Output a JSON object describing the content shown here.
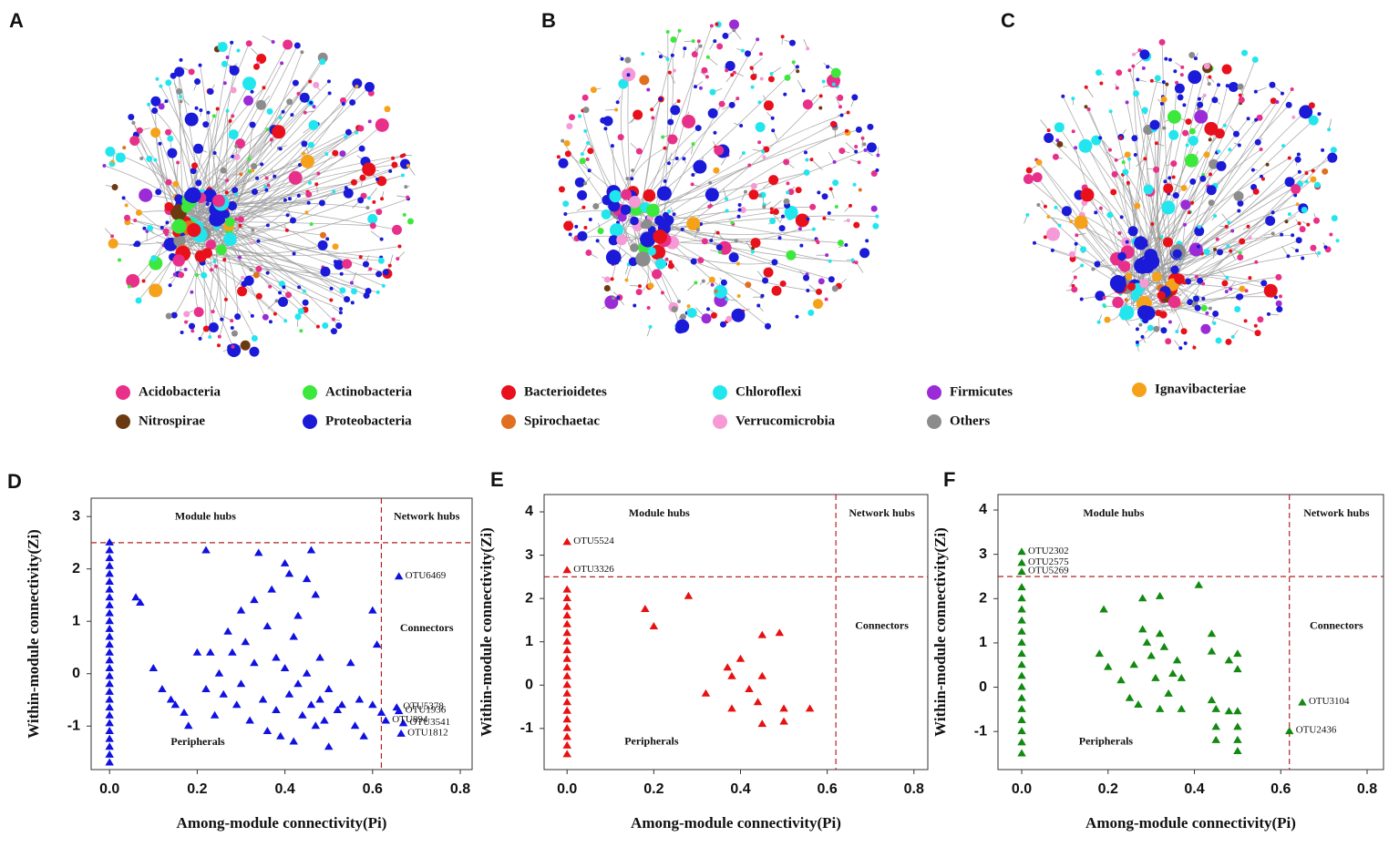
{
  "networks": {
    "panels": [
      "A",
      "B",
      "C"
    ]
  },
  "legend": [
    {
      "name": "Acidobacteria",
      "color": "#e8308a"
    },
    {
      "name": "Actinobacteria",
      "color": "#3de83d"
    },
    {
      "name": "Bacterioidetes",
      "color": "#e8101a"
    },
    {
      "name": "Chloroflexi",
      "color": "#22e6ee"
    },
    {
      "name": "Firmicutes",
      "color": "#9a2bd6"
    },
    {
      "name": "Ignavibacteriae",
      "color": "#f5a21a"
    },
    {
      "name": "Nitrospirae",
      "color": "#6b3a10"
    },
    {
      "name": "Proteobacteria",
      "color": "#1a1ad8"
    },
    {
      "name": "Spirochaetac",
      "color": "#e07020"
    },
    {
      "name": "Verrucomicrobia",
      "color": "#f59ad6"
    },
    {
      "name": "Others",
      "color": "#8c8c8c"
    }
  ],
  "chart_data": [
    {
      "type": "scatter",
      "label": "D",
      "color": "#1010e0",
      "x_label": "Among-module connectivity(Pi)",
      "y_label": "Within-module connectivity(Zi)",
      "xlim": [
        -0.042,
        0.827
      ],
      "ylim": [
        -1.83,
        3.35
      ],
      "xticks": [
        {
          "value": 0,
          "label": "0.0"
        },
        0.2,
        0.4,
        0.6,
        0.8
      ],
      "yticks": [
        -1,
        0,
        1,
        2,
        3
      ],
      "thresholds": {
        "zi": 2.5,
        "pi": 0.62
      },
      "regions": [
        "Module hubs",
        "Network hubs",
        "Connectors",
        "Peripherals"
      ],
      "x": [
        0,
        0,
        0,
        0,
        0,
        0,
        0,
        0,
        0,
        0,
        0,
        0,
        0,
        0,
        0,
        0,
        0,
        0,
        0,
        0,
        0,
        0,
        0,
        0,
        0,
        0,
        0,
        0,
        0,
        0.06,
        0.07,
        0.1,
        0.12,
        0.14,
        0.15,
        0.17,
        0.18,
        0.2,
        0.22,
        0.22,
        0.23,
        0.24,
        0.25,
        0.26,
        0.27,
        0.28,
        0.29,
        0.3,
        0.3,
        0.31,
        0.32,
        0.33,
        0.33,
        0.34,
        0.35,
        0.36,
        0.36,
        0.37,
        0.38,
        0.38,
        0.39,
        0.4,
        0.4,
        0.41,
        0.41,
        0.42,
        0.42,
        0.43,
        0.43,
        0.44,
        0.45,
        0.45,
        0.46,
        0.46,
        0.47,
        0.47,
        0.48,
        0.48,
        0.49,
        0.5,
        0.5,
        0.52,
        0.53,
        0.55,
        0.56,
        0.57,
        0.58,
        0.6,
        0.6,
        0.61,
        0.62
      ],
      "values": [
        -1.7,
        -1.55,
        -1.4,
        -1.25,
        -1.1,
        -0.95,
        -0.8,
        -0.65,
        -0.5,
        -0.35,
        -0.2,
        -0.05,
        0.1,
        0.25,
        0.4,
        0.55,
        0.7,
        0.85,
        1.0,
        1.15,
        1.3,
        1.45,
        1.6,
        1.75,
        1.9,
        2.05,
        2.2,
        2.35,
        2.5,
        1.45,
        1.35,
        0.1,
        -0.3,
        -0.5,
        -0.6,
        -0.75,
        -1.0,
        0.4,
        2.35,
        -0.3,
        0.4,
        -0.8,
        0.0,
        -0.4,
        0.8,
        0.4,
        -0.6,
        1.2,
        -0.2,
        0.6,
        -0.9,
        1.4,
        0.2,
        2.3,
        -0.5,
        0.9,
        -1.1,
        1.6,
        0.3,
        -0.7,
        -1.2,
        2.1,
        0.1,
        1.9,
        -0.4,
        0.7,
        -1.3,
        1.1,
        -0.2,
        -0.8,
        1.8,
        0.0,
        2.35,
        -0.6,
        1.5,
        -1.0,
        0.3,
        -0.5,
        -0.9,
        -1.4,
        -0.3,
        -0.7,
        -0.6,
        0.2,
        -1.0,
        -0.5,
        -1.2,
        1.2,
        -0.6,
        0.55,
        -0.75
      ],
      "annotations": [
        {
          "text": "OTU6469",
          "x": 0.66,
          "y": 1.85
        },
        {
          "text": "OTU5378",
          "x": 0.655,
          "y": -0.65
        },
        {
          "text": "OTU1936",
          "x": 0.66,
          "y": -0.72
        },
        {
          "text": "OTU3541",
          "x": 0.67,
          "y": -0.95
        },
        {
          "text": "OTU1812",
          "x": 0.665,
          "y": -1.15
        },
        {
          "text": "OTU894",
          "x": 0.63,
          "y": -0.9
        }
      ]
    },
    {
      "type": "scatter",
      "label": "E",
      "color": "#e81010",
      "x_label": "Among-module connectivity(Pi)",
      "y_label": "Within-module connectivity(Zi)",
      "xlim": [
        -0.053,
        0.832
      ],
      "ylim": [
        -1.95,
        4.4
      ],
      "xticks": [
        {
          "value": 0,
          "label": "0.0"
        },
        0.2,
        0.4,
        0.6,
        0.8
      ],
      "yticks": [
        -1,
        0,
        1,
        2,
        3,
        4
      ],
      "thresholds": {
        "zi": 2.5,
        "pi": 0.62
      },
      "regions": [
        "Module hubs",
        "Network hubs",
        "Connectors",
        "Peripherals"
      ],
      "x": [
        0,
        0,
        0,
        0,
        0,
        0,
        0,
        0,
        0,
        0,
        0,
        0,
        0,
        0,
        0,
        0,
        0,
        0,
        0,
        0,
        0.18,
        0.2,
        0.28,
        0.32,
        0.37,
        0.38,
        0.38,
        0.4,
        0.42,
        0.44,
        0.45,
        0.45,
        0.45,
        0.49,
        0.5,
        0.5,
        0.56
      ],
      "values": [
        -1.6,
        -1.4,
        -1.2,
        -1.0,
        -0.8,
        -0.6,
        -0.4,
        -0.2,
        0.0,
        0.2,
        0.4,
        0.6,
        0.8,
        1.0,
        1.2,
        1.4,
        1.6,
        1.8,
        2.0,
        2.2,
        1.75,
        1.35,
        2.05,
        -0.2,
        0.4,
        -0.55,
        0.2,
        0.6,
        -0.1,
        -0.4,
        1.15,
        -0.9,
        0.2,
        1.2,
        -0.55,
        -0.85,
        -0.55
      ],
      "annotations": [
        {
          "text": "OTU5524",
          "x": 0,
          "y": 3.3
        },
        {
          "text": "OTU3326",
          "x": 0,
          "y": 2.65
        }
      ]
    },
    {
      "type": "scatter",
      "label": "F",
      "color": "#128a12",
      "x_label": "Among-module connectivity(Pi)",
      "y_label": "Within-module connectivity(Zi)",
      "xlim": [
        -0.055,
        0.838
      ],
      "ylim": [
        -1.86,
        4.35
      ],
      "xticks": [
        {
          "value": 0,
          "label": "0.0"
        },
        0.2,
        0.4,
        0.6,
        0.8
      ],
      "yticks": [
        -1,
        0,
        1,
        2,
        3,
        4
      ],
      "thresholds": {
        "zi": 2.5,
        "pi": 0.62
      },
      "regions": [
        "Module hubs",
        "Network hubs",
        "Connectors",
        "Peripherals"
      ],
      "x": [
        0,
        0,
        0,
        0,
        0,
        0,
        0,
        0,
        0,
        0,
        0,
        0,
        0,
        0,
        0,
        0,
        0.18,
        0.19,
        0.2,
        0.23,
        0.25,
        0.26,
        0.27,
        0.28,
        0.28,
        0.29,
        0.3,
        0.31,
        0.32,
        0.32,
        0.32,
        0.33,
        0.34,
        0.35,
        0.36,
        0.37,
        0.37,
        0.41,
        0.44,
        0.44,
        0.44,
        0.45,
        0.45,
        0.45,
        0.48,
        0.48,
        0.5,
        0.5,
        0.5,
        0.5,
        0.5,
        0.5
      ],
      "values": [
        -1.5,
        -1.25,
        -1.0,
        -0.75,
        -0.5,
        -0.25,
        0.0,
        0.25,
        0.5,
        0.75,
        1.0,
        1.25,
        1.5,
        1.75,
        2.0,
        2.25,
        0.75,
        1.75,
        0.45,
        0.15,
        -0.25,
        0.5,
        -0.4,
        2.0,
        1.3,
        1.0,
        0.7,
        0.2,
        2.05,
        1.2,
        -0.5,
        0.9,
        -0.15,
        0.3,
        0.6,
        -0.5,
        0.2,
        2.3,
        1.2,
        0.8,
        -0.3,
        -0.5,
        -0.9,
        -1.2,
        0.6,
        -0.55,
        0.75,
        0.4,
        -0.55,
        -0.9,
        -1.2,
        -1.45
      ],
      "annotations": [
        {
          "text": "OTU2302",
          "x": 0,
          "y": 3.05
        },
        {
          "text": "OTU2575",
          "x": 0,
          "y": 2.8
        },
        {
          "text": "OTU5269",
          "x": 0,
          "y": 2.6
        },
        {
          "text": "OTU3104",
          "x": 0.65,
          "y": -0.35
        },
        {
          "text": "OTU2436",
          "x": 0.62,
          "y": -1.0
        }
      ]
    }
  ]
}
